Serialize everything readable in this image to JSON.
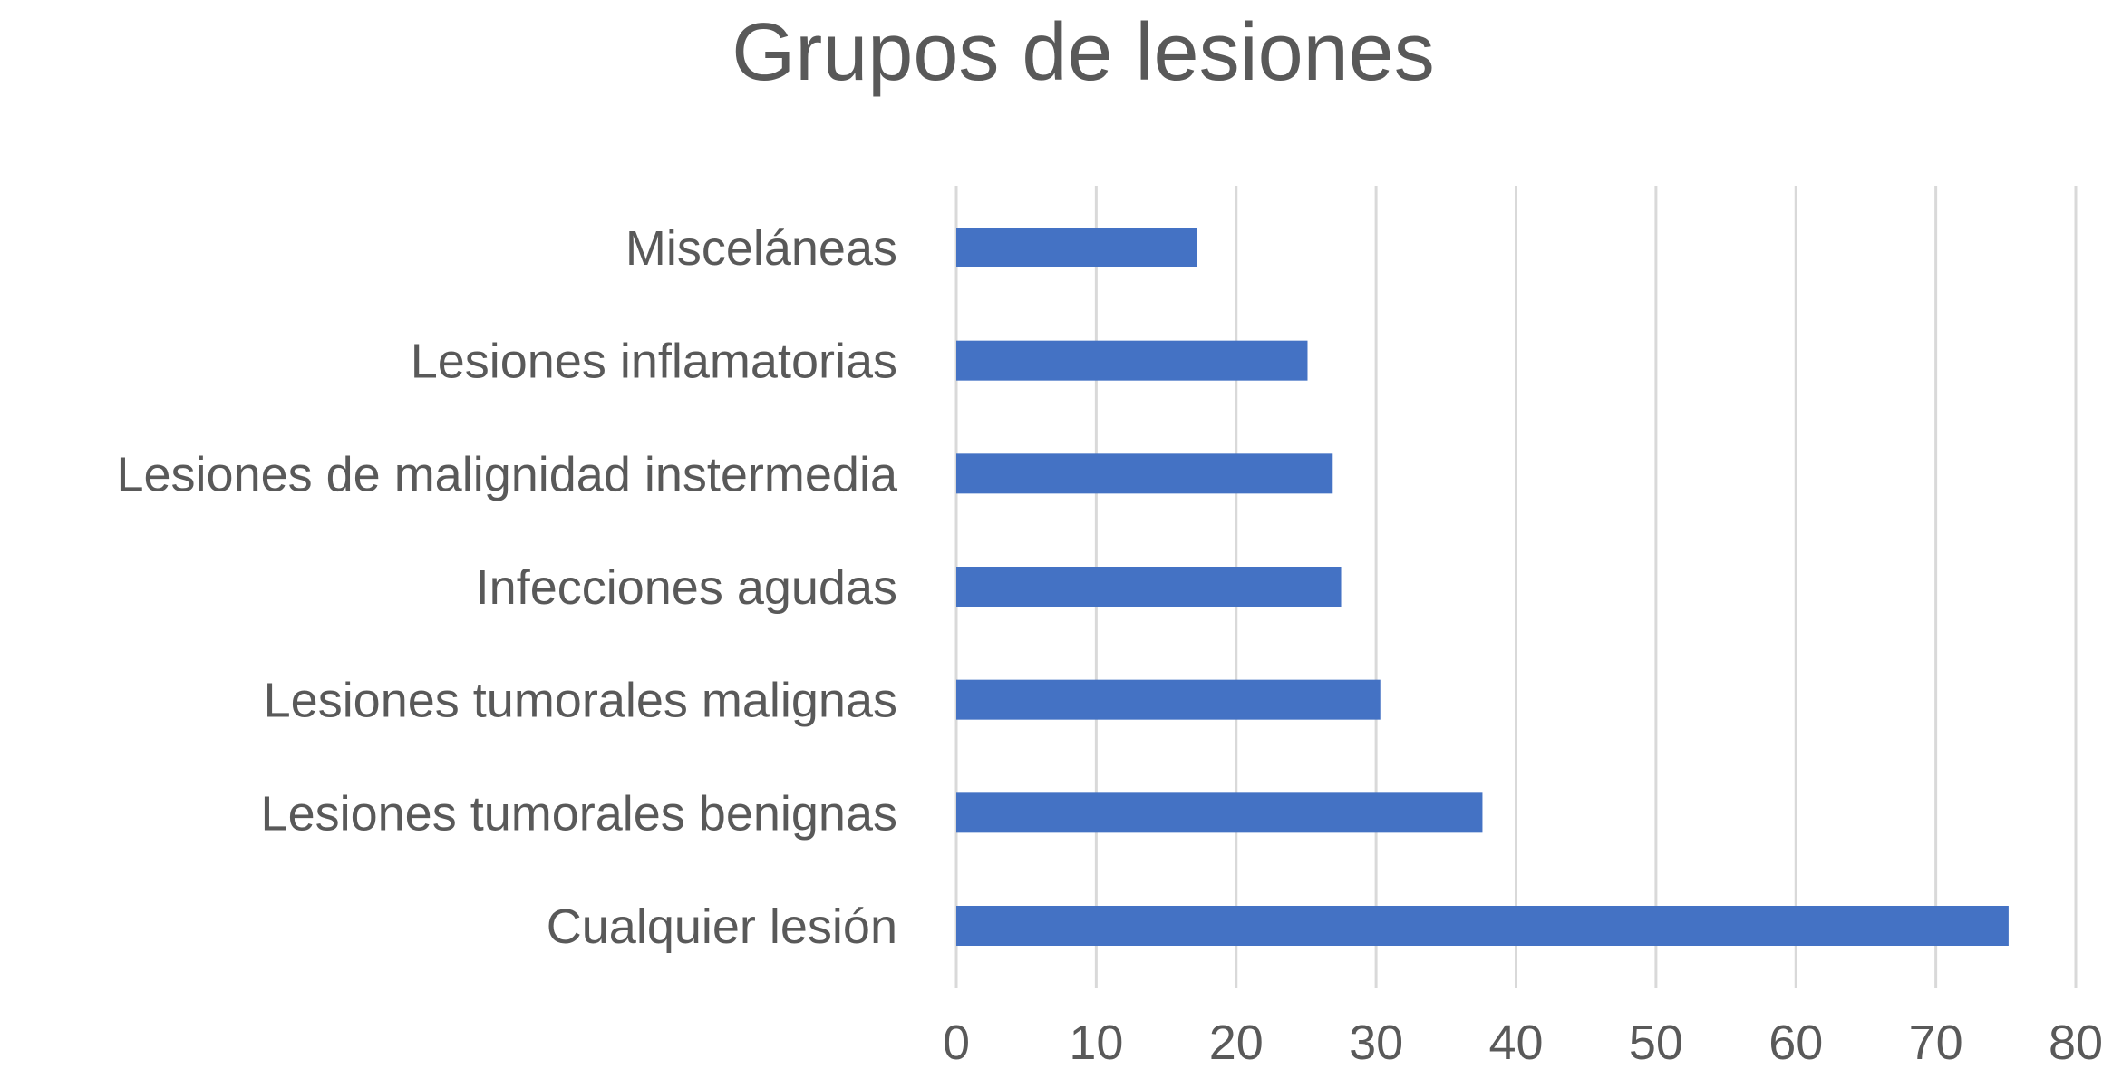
{
  "chart_data": {
    "type": "bar",
    "orientation": "horizontal",
    "title": "Grupos de lesiones",
    "xlabel": "",
    "ylabel": "",
    "categories": [
      "Misceláneas",
      "Lesiones inflamatorias",
      "Lesiones de malignidad instermedia",
      "Infecciones agudas",
      "Lesiones tumorales malignas",
      "Lesiones tumorales benignas",
      "Cualquier lesión"
    ],
    "values": [
      17.2,
      25.1,
      26.9,
      27.5,
      30.3,
      37.6,
      75.2
    ],
    "xlim": [
      0,
      80
    ],
    "ticks": [
      0,
      10,
      20,
      30,
      40,
      50,
      60,
      70,
      80
    ],
    "tick_labels": [
      "0",
      "10",
      "20",
      "30",
      "40",
      "50",
      "60",
      "70",
      "80"
    ],
    "grid": "vertical",
    "legend": "none",
    "bar_color": "#4472C4",
    "gridline_color": "#D9D9D9",
    "text_color": "#595959"
  }
}
